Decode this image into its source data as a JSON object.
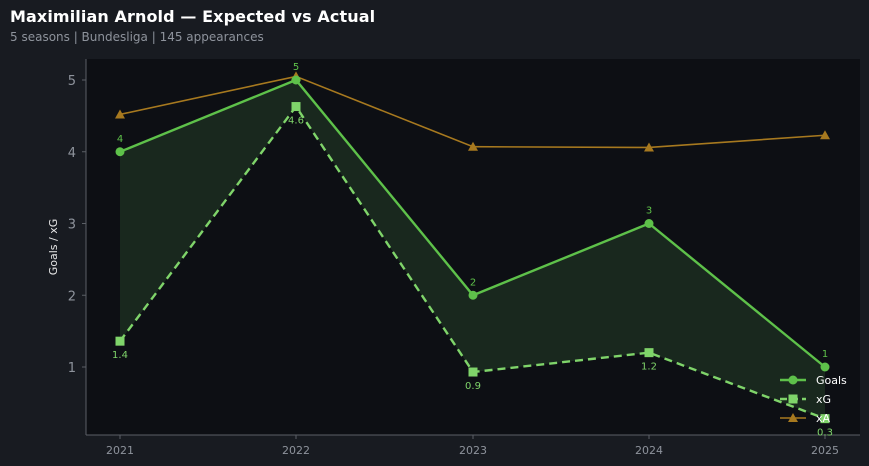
{
  "header": {
    "title": "Maximilian Arnold — Expected vs Actual",
    "subtitle": "5 seasons | Bundesliga | 145 appearances"
  },
  "colors": {
    "goals": "#5ec14a",
    "xg": "#7fd46a",
    "xa": "#a7791f",
    "fill": "#1a2a1f",
    "plot_bg": "#0d0f14",
    "axis": "#5b5f66"
  },
  "chart_data": {
    "type": "line",
    "x": [
      2021,
      2022,
      2023,
      2024,
      2025
    ],
    "xticks": [
      "2021",
      "2022",
      "2023",
      "2024",
      "2025"
    ],
    "ylabel": "Goals / xG",
    "ylim": [
      0.2,
      5.3
    ],
    "yticks": [
      "1",
      "2",
      "3",
      "4",
      "5"
    ],
    "grid": false,
    "legend_position": "bottom-right",
    "series": [
      {
        "name": "Goals",
        "key": "goals",
        "values": [
          4,
          5,
          2,
          3,
          1
        ],
        "labels": [
          "4",
          "5",
          "2",
          "3",
          "1"
        ],
        "style": "solid",
        "marker": "circle"
      },
      {
        "name": "xG",
        "key": "xg",
        "values": [
          1.36,
          4.63,
          0.93,
          1.2,
          0.28
        ],
        "labels": [
          "1.4",
          "4.6",
          "0.9",
          "1.2",
          "0.3"
        ],
        "style": "dashed",
        "marker": "square"
      },
      {
        "name": "xA",
        "key": "xa",
        "values": [
          4.52,
          5.05,
          4.07,
          4.06,
          4.23
        ],
        "style": "solid",
        "marker": "triangle"
      }
    ]
  }
}
